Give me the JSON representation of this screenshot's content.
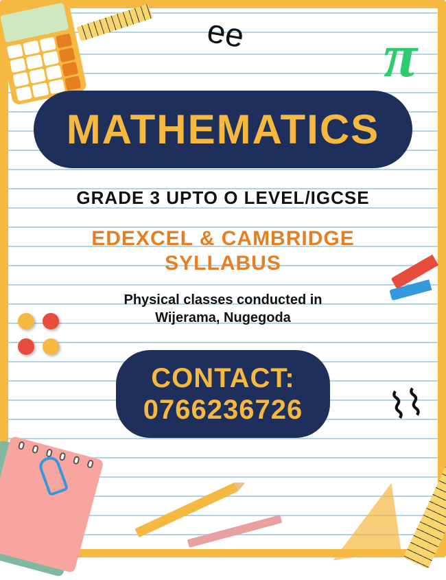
{
  "colors": {
    "border": "#f5b840",
    "pill_bg": "#1d2f5a",
    "accent_yellow": "#f5b840",
    "accent_orange": "#e67e22",
    "text_dark": "#111111",
    "line_color": "#b0d4e8",
    "pi_green": "#2ecc71"
  },
  "title": "MATHEMATICS",
  "grade_line": "GRADE 3 UPTO O LEVEL/IGCSE",
  "syllabus_line1": "EDEXCEL & CAMBRIDGE",
  "syllabus_line2": "SYLLABUS",
  "location_line1": "Physical classes conducted in",
  "location_line2": "Wijerama, Nugegoda",
  "contact_label": "CONTACT:",
  "contact_number": "0766236726",
  "decorations": {
    "pi_symbol": "π",
    "pin_colors": [
      "#f5b840",
      "#e74c3c",
      "#f5b840",
      "#e74c3c"
    ]
  },
  "typography": {
    "title_size": 60,
    "grade_size": 26,
    "syllabus_size": 30,
    "location_size": 20,
    "contact_size": 40
  }
}
